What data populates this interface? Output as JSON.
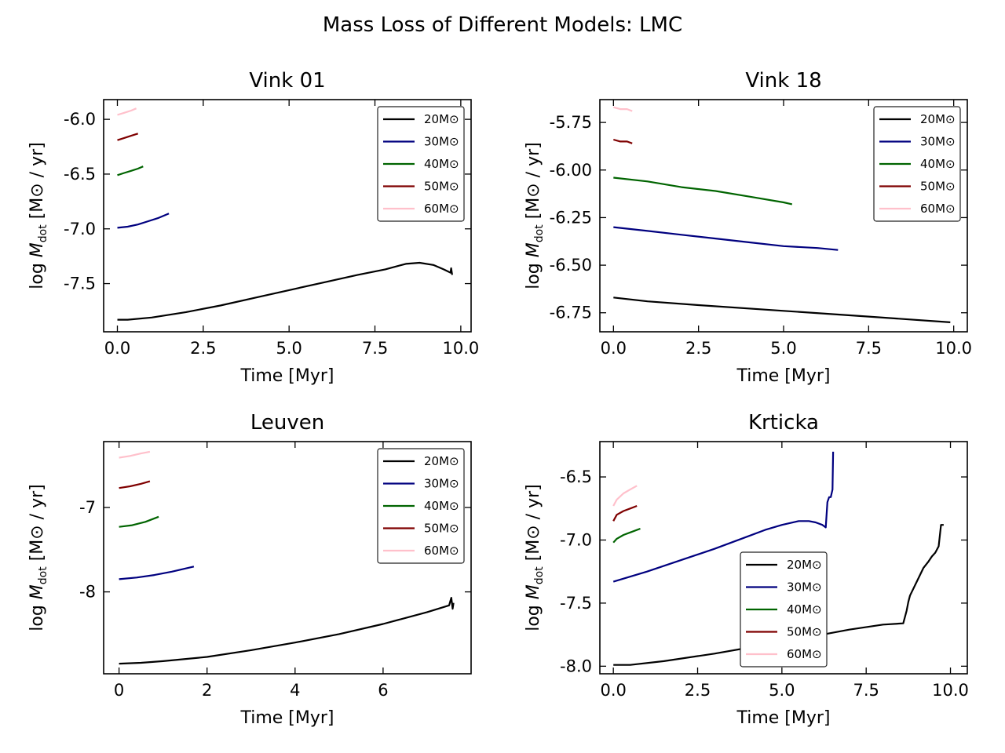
{
  "suptitle": "Mass Loss of Different Models: LMC",
  "legend_labels": [
    "20M⊙",
    "30M⊙",
    "40M⊙",
    "50M⊙",
    "60M⊙"
  ],
  "colors": {
    "20M": "#000000",
    "30M": "#00007f",
    "40M": "#006400",
    "50M": "#7f0000",
    "60M": "#ffc0cb"
  },
  "chart_data": [
    {
      "type": "line",
      "title": "Vink 01",
      "xlabel": "Time [Myr]",
      "ylabel": "log Ṁdot [M⊙ / yr]",
      "xlim": [
        -0.4,
        10.3
      ],
      "ylim": [
        -7.94,
        -5.82
      ],
      "xticks": [
        0.0,
        2.5,
        5.0,
        7.5,
        10.0
      ],
      "xticklabels": [
        "0.0",
        "2.5",
        "5.0",
        "7.5",
        "10.0"
      ],
      "yticks": [
        -7.5,
        -7.0,
        -6.5,
        -6.0
      ],
      "yticklabels": [
        "-7.5",
        "-7.0",
        "-6.5",
        "-6.0"
      ],
      "legend_loc": "upper right",
      "series": [
        {
          "name": "20M⊙",
          "color": "#000000",
          "x": [
            0.0,
            0.3,
            1.0,
            2.0,
            3.0,
            4.0,
            5.0,
            6.0,
            7.0,
            7.8,
            8.4,
            8.8,
            9.2,
            9.5,
            9.7,
            9.72,
            9.75
          ],
          "y": [
            -7.83,
            -7.83,
            -7.81,
            -7.76,
            -7.7,
            -7.63,
            -7.56,
            -7.49,
            -7.42,
            -7.37,
            -7.32,
            -7.31,
            -7.33,
            -7.37,
            -7.4,
            -7.36,
            -7.42
          ]
        },
        {
          "name": "30M⊙",
          "color": "#00007f",
          "x": [
            0.0,
            0.3,
            0.6,
            0.9,
            1.2,
            1.5
          ],
          "y": [
            -6.99,
            -6.98,
            -6.96,
            -6.93,
            -6.9,
            -6.86
          ]
        },
        {
          "name": "40M⊙",
          "color": "#006400",
          "x": [
            0.0,
            0.2,
            0.4,
            0.6,
            0.75
          ],
          "y": [
            -6.51,
            -6.49,
            -6.47,
            -6.45,
            -6.43
          ]
        },
        {
          "name": "50M⊙",
          "color": "#7f0000",
          "x": [
            0.0,
            0.2,
            0.4,
            0.6
          ],
          "y": [
            -6.19,
            -6.17,
            -6.15,
            -6.13
          ]
        },
        {
          "name": "60M⊙",
          "color": "#ffc0cb",
          "x": [
            0.0,
            0.2,
            0.4,
            0.55
          ],
          "y": [
            -5.96,
            -5.94,
            -5.92,
            -5.9
          ]
        }
      ]
    },
    {
      "type": "line",
      "title": "Vink 18",
      "xlabel": "Time [Myr]",
      "ylabel": "log Ṁdot [M⊙ / yr]",
      "xlim": [
        -0.4,
        10.4
      ],
      "ylim": [
        -6.85,
        -5.63
      ],
      "xticks": [
        0.0,
        2.5,
        5.0,
        7.5,
        10.0
      ],
      "xticklabels": [
        "0.0",
        "2.5",
        "5.0",
        "7.5",
        "10.0"
      ],
      "yticks": [
        -6.75,
        -6.5,
        -6.25,
        -6.0,
        -5.75
      ],
      "yticklabels": [
        "-6.75",
        "-6.50",
        "-6.25",
        "-6.00",
        "-5.75"
      ],
      "legend_loc": "upper right",
      "series": [
        {
          "name": "20M⊙",
          "color": "#000000",
          "x": [
            0.0,
            1.0,
            2.5,
            5.0,
            7.5,
            9.9
          ],
          "y": [
            -6.67,
            -6.69,
            -6.71,
            -6.74,
            -6.77,
            -6.8
          ]
        },
        {
          "name": "30M⊙",
          "color": "#00007f",
          "x": [
            0.0,
            1.0,
            2.0,
            3.0,
            4.0,
            5.0,
            6.0,
            6.6
          ],
          "y": [
            -6.3,
            -6.32,
            -6.34,
            -6.36,
            -6.38,
            -6.4,
            -6.41,
            -6.42
          ]
        },
        {
          "name": "40M⊙",
          "color": "#006400",
          "x": [
            0.0,
            1.0,
            2.0,
            3.0,
            4.0,
            5.0,
            5.25
          ],
          "y": [
            -6.04,
            -6.06,
            -6.09,
            -6.11,
            -6.14,
            -6.17,
            -6.18
          ]
        },
        {
          "name": "50M⊙",
          "color": "#7f0000",
          "x": [
            0.0,
            0.2,
            0.4,
            0.55
          ],
          "y": [
            -5.84,
            -5.85,
            -5.85,
            -5.86
          ]
        },
        {
          "name": "60M⊙",
          "color": "#ffc0cb",
          "x": [
            0.0,
            0.2,
            0.4,
            0.55
          ],
          "y": [
            -5.67,
            -5.68,
            -5.68,
            -5.69
          ]
        }
      ]
    },
    {
      "type": "line",
      "title": "Leuven",
      "xlabel": "Time [Myr]",
      "ylabel": "log Ṁdot [M⊙ / yr]",
      "xlim": [
        -0.35,
        8.0
      ],
      "ylim": [
        -8.97,
        -6.22
      ],
      "xticks": [
        0,
        2,
        4,
        6
      ],
      "xticklabels": [
        "0",
        "2",
        "4",
        "6"
      ],
      "yticks": [
        -8,
        -7
      ],
      "yticklabels": [
        "-8",
        "-7"
      ],
      "legend_loc": "upper right",
      "series": [
        {
          "name": "20M⊙",
          "color": "#000000",
          "x": [
            0.0,
            0.5,
            1.0,
            2.0,
            3.0,
            4.0,
            5.0,
            6.0,
            7.0,
            7.5,
            7.55,
            7.58,
            7.6
          ],
          "y": [
            -8.85,
            -8.84,
            -8.82,
            -8.77,
            -8.69,
            -8.6,
            -8.5,
            -8.38,
            -8.24,
            -8.16,
            -8.07,
            -8.2,
            -8.13
          ]
        },
        {
          "name": "30M⊙",
          "color": "#00007f",
          "x": [
            0.0,
            0.4,
            0.8,
            1.2,
            1.7
          ],
          "y": [
            -7.85,
            -7.83,
            -7.8,
            -7.76,
            -7.7
          ]
        },
        {
          "name": "40M⊙",
          "color": "#006400",
          "x": [
            0.0,
            0.3,
            0.6,
            0.9
          ],
          "y": [
            -7.23,
            -7.21,
            -7.17,
            -7.11
          ]
        },
        {
          "name": "50M⊙",
          "color": "#7f0000",
          "x": [
            0.0,
            0.25,
            0.5,
            0.7
          ],
          "y": [
            -6.77,
            -6.75,
            -6.72,
            -6.69
          ]
        },
        {
          "name": "60M⊙",
          "color": "#ffc0cb",
          "x": [
            0.0,
            0.25,
            0.5,
            0.7
          ],
          "y": [
            -6.41,
            -6.39,
            -6.36,
            -6.34
          ]
        }
      ]
    },
    {
      "type": "line",
      "title": "Krticka",
      "xlabel": "Time [Myr]",
      "ylabel": "log Ṁdot [M⊙ / yr]",
      "xlim": [
        -0.4,
        10.5
      ],
      "ylim": [
        -8.06,
        -6.22
      ],
      "xticks": [
        0.0,
        2.5,
        5.0,
        7.5,
        10.0
      ],
      "xticklabels": [
        "0.0",
        "2.5",
        "5.0",
        "7.5",
        "10.0"
      ],
      "yticks": [
        -8.0,
        -7.5,
        -7.0,
        -6.5
      ],
      "yticklabels": [
        "-8.0",
        "-7.5",
        "-7.0",
        "-6.5"
      ],
      "legend_loc": "lower center",
      "series": [
        {
          "name": "20M⊙",
          "color": "#000000",
          "x": [
            0.0,
            0.5,
            1.5,
            3.0,
            4.5,
            6.0,
            7.0,
            8.0,
            8.6,
            8.7,
            8.75,
            8.8,
            9.0,
            9.2,
            9.35,
            9.45,
            9.55,
            9.65,
            9.72,
            9.8
          ],
          "y": [
            -7.99,
            -7.99,
            -7.96,
            -7.9,
            -7.83,
            -7.76,
            -7.71,
            -7.67,
            -7.66,
            -7.56,
            -7.49,
            -7.44,
            -7.33,
            -7.22,
            -7.17,
            -7.13,
            -7.1,
            -7.05,
            -6.88,
            -6.88
          ]
        },
        {
          "name": "30M⊙",
          "color": "#00007f",
          "x": [
            0.0,
            1.0,
            2.0,
            3.0,
            4.0,
            4.5,
            5.0,
            5.5,
            5.8,
            6.0,
            6.2,
            6.3,
            6.35,
            6.4,
            6.45,
            6.5,
            6.52
          ],
          "y": [
            -7.33,
            -7.25,
            -7.16,
            -7.07,
            -6.97,
            -6.92,
            -6.88,
            -6.85,
            -6.85,
            -6.86,
            -6.88,
            -6.9,
            -6.7,
            -6.66,
            -6.66,
            -6.6,
            -6.3
          ]
        },
        {
          "name": "40M⊙",
          "color": "#006400",
          "x": [
            0.0,
            0.1,
            0.3,
            0.5,
            0.8
          ],
          "y": [
            -7.02,
            -6.99,
            -6.96,
            -6.94,
            -6.91
          ]
        },
        {
          "name": "50M⊙",
          "color": "#7f0000",
          "x": [
            0.0,
            0.1,
            0.3,
            0.5,
            0.7
          ],
          "y": [
            -6.85,
            -6.8,
            -6.77,
            -6.75,
            -6.73
          ]
        },
        {
          "name": "60M⊙",
          "color": "#ffc0cb",
          "x": [
            0.0,
            0.1,
            0.3,
            0.5,
            0.7
          ],
          "y": [
            -6.73,
            -6.68,
            -6.63,
            -6.6,
            -6.57
          ]
        }
      ]
    }
  ]
}
